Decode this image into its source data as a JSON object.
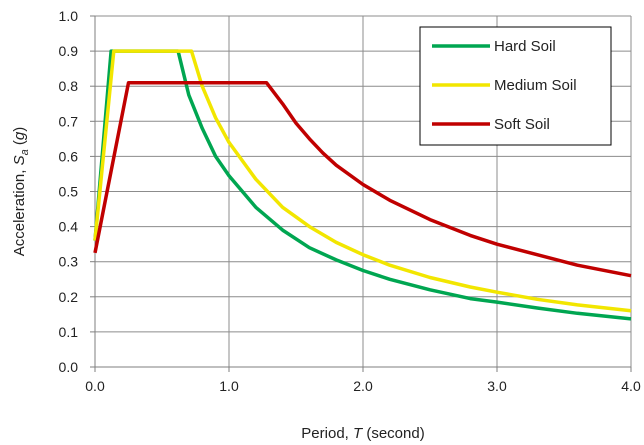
{
  "chart_data": {
    "type": "line",
    "title": "",
    "xlabel": {
      "prefix": "Period, ",
      "symbol": "T",
      "suffix": " (second)"
    },
    "ylabel": {
      "prefix": "Acceleration,  ",
      "symbol": "S",
      "subscript": "a",
      "suffix_open": " (",
      "unit": "g",
      "suffix_close": ")"
    },
    "xlim": [
      0,
      4
    ],
    "ylim": [
      0,
      1
    ],
    "x_ticks": [
      0,
      1,
      2,
      3,
      4
    ],
    "x_tick_labels": [
      "0.0",
      "1.0",
      "2.0",
      "3.0",
      "4.0"
    ],
    "y_ticks": [
      0,
      0.1,
      0.2,
      0.3,
      0.4,
      0.5,
      0.6,
      0.7,
      0.8,
      0.9,
      1.0
    ],
    "y_tick_labels": [
      "0.0",
      "0.1",
      "0.2",
      "0.3",
      "0.4",
      "0.5",
      "0.6",
      "0.7",
      "0.8",
      "0.9",
      "1.0"
    ],
    "grid": true,
    "legend_position": "top-right",
    "series": [
      {
        "name": "Hard Soil",
        "color": "#00a651",
        "x": [
          0,
          0.12,
          0.62,
          0.7,
          0.8,
          0.9,
          1.0,
          1.2,
          1.4,
          1.6,
          1.8,
          2.0,
          2.2,
          2.5,
          2.8,
          3.0,
          3.3,
          3.6,
          4.0
        ],
        "y": [
          0.36,
          0.9,
          0.9,
          0.775,
          0.68,
          0.6,
          0.545,
          0.455,
          0.39,
          0.34,
          0.305,
          0.275,
          0.25,
          0.22,
          0.195,
          0.185,
          0.168,
          0.153,
          0.137
        ]
      },
      {
        "name": "Medium Soil",
        "color": "#f2e600",
        "x": [
          0,
          0.14,
          0.72,
          0.8,
          0.9,
          1.0,
          1.2,
          1.4,
          1.6,
          1.8,
          2.0,
          2.2,
          2.5,
          2.8,
          3.0,
          3.3,
          3.6,
          4.0
        ],
        "y": [
          0.36,
          0.9,
          0.9,
          0.8,
          0.71,
          0.64,
          0.535,
          0.455,
          0.4,
          0.355,
          0.32,
          0.29,
          0.255,
          0.228,
          0.213,
          0.193,
          0.177,
          0.16
        ]
      },
      {
        "name": "Soft Soil",
        "color": "#c00000",
        "x": [
          0,
          0.25,
          1.28,
          1.4,
          1.5,
          1.6,
          1.7,
          1.8,
          2.0,
          2.2,
          2.5,
          2.8,
          3.0,
          3.3,
          3.6,
          4.0
        ],
        "y": [
          0.325,
          0.81,
          0.81,
          0.75,
          0.695,
          0.65,
          0.61,
          0.575,
          0.52,
          0.475,
          0.42,
          0.375,
          0.35,
          0.32,
          0.29,
          0.26
        ]
      }
    ]
  }
}
